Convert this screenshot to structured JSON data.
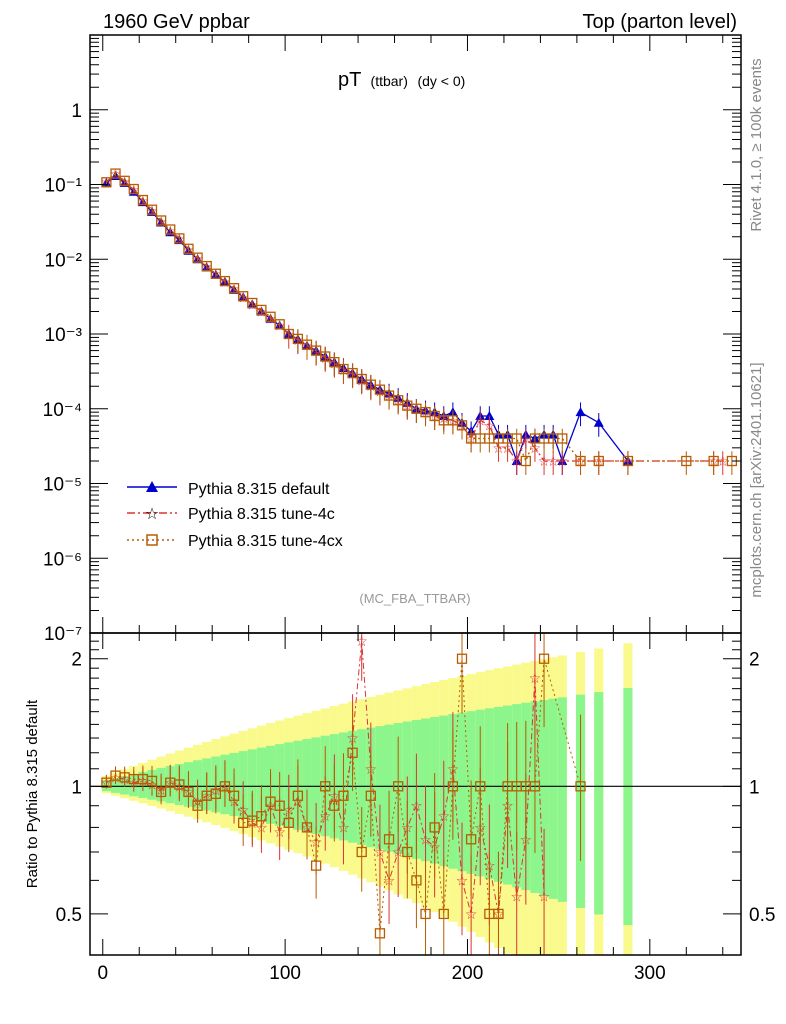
{
  "header": {
    "left": "1960 GeV ppbar",
    "right": "Top (parton level)"
  },
  "side_labels": {
    "rivet": "Rivet 4.1.0, ≥ 100k events",
    "mcplots": "mcplots.cern.ch [arXiv:2401.10621]"
  },
  "chart_data": [
    {
      "type": "line",
      "panel": "main",
      "title": "pT",
      "title_small": "(ttbar)",
      "title_suffix": "(dy < 0)",
      "watermark": "(MC_FBA_TTBAR)",
      "yscale": "log",
      "xlim": [
        -7,
        350
      ],
      "ylim": [
        1e-07,
        10
      ],
      "y_ticks": [
        {
          "v": 1,
          "label": "1"
        },
        {
          "v": 0.1,
          "label": "10⁻¹"
        },
        {
          "v": 0.01,
          "label": "10⁻²"
        },
        {
          "v": 0.001,
          "label": "10⁻³"
        },
        {
          "v": 0.0001,
          "label": "10⁻⁴"
        },
        {
          "v": 1e-05,
          "label": "10⁻⁵"
        },
        {
          "v": 1e-06,
          "label": "10⁻⁶"
        },
        {
          "v": 1e-07,
          "label": "10⁻⁷"
        }
      ],
      "series": [
        {
          "name": "Pythia 8.315 default",
          "color": "#0000cc",
          "marker": "triangle",
          "dash": "",
          "x": [
            2,
            7,
            12,
            17,
            22,
            27,
            32,
            37,
            42,
            47,
            52,
            57,
            62,
            67,
            72,
            77,
            82,
            87,
            92,
            97,
            102,
            107,
            112,
            117,
            122,
            127,
            132,
            137,
            142,
            147,
            152,
            157,
            162,
            167,
            172,
            177,
            182,
            187,
            192,
            197,
            202,
            207,
            212,
            217,
            222,
            227,
            232,
            237,
            242,
            247,
            252,
            262,
            272,
            288
          ],
          "y": [
            0.105,
            0.13,
            0.105,
            0.08,
            0.058,
            0.043,
            0.031,
            0.023,
            0.018,
            0.013,
            0.01,
            0.0078,
            0.0062,
            0.005,
            0.0039,
            0.0031,
            0.0025,
            0.002,
            0.0016,
            0.0013,
            0.001,
            0.00085,
            0.0007,
            0.0006,
            0.0005,
            0.00042,
            0.00035,
            0.0003,
            0.00025,
            0.00021,
            0.00018,
            0.00016,
            0.00014,
            0.00012,
            0.0001,
            9.5e-05,
            9e-05,
            8e-05,
            9e-05,
            6.5e-05,
            5e-05,
            8e-05,
            8e-05,
            4.5e-05,
            4.5e-05,
            2e-05,
            4.5e-05,
            4e-05,
            4.5e-05,
            4.5e-05,
            2e-05,
            9e-05,
            6.5e-05,
            2e-05
          ]
        },
        {
          "name": "Pythia 8.315 tune-4c",
          "color": "#dd3333",
          "marker": "star",
          "dash": "8,3,2,3",
          "x": [
            2,
            7,
            12,
            17,
            22,
            27,
            32,
            37,
            42,
            47,
            52,
            57,
            62,
            67,
            72,
            77,
            82,
            87,
            92,
            97,
            102,
            107,
            112,
            117,
            122,
            127,
            132,
            137,
            142,
            147,
            152,
            157,
            162,
            167,
            172,
            177,
            182,
            187,
            192,
            197,
            202,
            207,
            212,
            217,
            222,
            227,
            232,
            237,
            242,
            247,
            252,
            262,
            272,
            288,
            335,
            340
          ],
          "y": [
            0.108,
            0.14,
            0.11,
            0.085,
            0.06,
            0.045,
            0.032,
            0.024,
            0.019,
            0.0135,
            0.0102,
            0.008,
            0.0063,
            0.005,
            0.004,
            0.0031,
            0.0025,
            0.002,
            0.0016,
            0.0013,
            0.00098,
            0.00083,
            0.0007,
            0.00058,
            0.00048,
            0.0004,
            0.00033,
            0.00029,
            0.00024,
            0.0002,
            0.00017,
            0.00015,
            0.00013,
            0.00011,
            0.0001,
            9e-05,
            8e-05,
            7.5e-05,
            7e-05,
            6e-05,
            4e-05,
            7e-05,
            6e-05,
            3e-05,
            3e-05,
            2e-05,
            4e-05,
            3e-05,
            2e-05,
            2e-05,
            2e-05,
            2e-05,
            2e-05,
            2e-05,
            2e-05,
            2e-05
          ]
        },
        {
          "name": "Pythia 8.315 tune-4cx",
          "color": "#b85c00",
          "marker": "square",
          "dash": "2,3",
          "x": [
            2,
            7,
            12,
            17,
            22,
            27,
            32,
            37,
            42,
            47,
            52,
            57,
            62,
            67,
            72,
            77,
            82,
            87,
            92,
            97,
            102,
            107,
            112,
            117,
            122,
            127,
            132,
            137,
            142,
            147,
            152,
            157,
            162,
            167,
            172,
            177,
            182,
            187,
            192,
            197,
            202,
            207,
            212,
            217,
            222,
            227,
            232,
            237,
            242,
            247,
            252,
            262,
            272,
            288,
            320,
            335,
            345
          ],
          "y": [
            0.107,
            0.14,
            0.112,
            0.087,
            0.062,
            0.046,
            0.033,
            0.025,
            0.019,
            0.0138,
            0.0105,
            0.0081,
            0.0064,
            0.0051,
            0.0041,
            0.0032,
            0.0026,
            0.0021,
            0.0017,
            0.00135,
            0.001,
            0.00086,
            0.00072,
            0.0006,
            0.0005,
            0.00042,
            0.00034,
            0.0003,
            0.00025,
            0.00021,
            0.00018,
            0.00015,
            0.00013,
            0.00011,
            0.0001,
            9e-05,
            8e-05,
            7e-05,
            7e-05,
            6e-05,
            4e-05,
            4e-05,
            4e-05,
            4e-05,
            4e-05,
            4e-05,
            2e-05,
            4e-05,
            4e-05,
            4e-05,
            4e-05,
            2e-05,
            2e-05,
            2e-05,
            2e-05,
            2e-05,
            2e-05
          ]
        }
      ]
    },
    {
      "type": "line",
      "panel": "ratio",
      "ylabel": "Ratio to Pythia 8.315 default",
      "xlim": [
        -7,
        350
      ],
      "ylim": [
        0.4,
        2.3
      ],
      "x_ticks": [
        0,
        100,
        200,
        300
      ],
      "y_ticks": [
        0.5,
        1,
        2
      ],
      "band_colors": {
        "inner": "#8cf58c",
        "outer": "#fafa8c"
      },
      "reference": 1,
      "series": [
        {
          "name": "Pythia 8.315 tune-4c",
          "color": "#dd3333",
          "marker": "star",
          "x": [
            2,
            7,
            12,
            17,
            22,
            27,
            32,
            37,
            42,
            47,
            52,
            57,
            62,
            67,
            72,
            77,
            82,
            87,
            92,
            97,
            102,
            107,
            112,
            117,
            122,
            127,
            132,
            137,
            142,
            147,
            152,
            157,
            162,
            167,
            172,
            177,
            182,
            187,
            192,
            197,
            202,
            207,
            212,
            217,
            222,
            227,
            232,
            237,
            242
          ],
          "y": [
            1.02,
            1.05,
            1.04,
            1.02,
            1.03,
            1.01,
            0.98,
            1.02,
            1.0,
            0.97,
            0.92,
            0.95,
            0.98,
            1.0,
            0.92,
            0.88,
            0.82,
            0.8,
            0.9,
            0.78,
            0.88,
            0.92,
            0.8,
            0.74,
            0.85,
            0.95,
            0.8,
            1.3,
            2.2,
            1.1,
            0.7,
            0.6,
            0.7,
            0.8,
            0.9,
            0.75,
            0.72,
            0.85,
            1.1,
            0.6,
            0.5,
            0.8,
            0.65,
            0.5,
            0.9,
            0.55,
            0.75,
            1.8,
            0.55
          ]
        },
        {
          "name": "Pythia 8.315 tune-4cx",
          "color": "#b85c00",
          "marker": "square",
          "x": [
            2,
            7,
            12,
            17,
            22,
            27,
            32,
            37,
            42,
            47,
            52,
            57,
            62,
            67,
            72,
            77,
            82,
            87,
            92,
            97,
            102,
            107,
            112,
            117,
            122,
            127,
            132,
            137,
            142,
            147,
            152,
            157,
            162,
            167,
            172,
            177,
            182,
            187,
            192,
            197,
            202,
            207,
            212,
            217,
            222,
            227,
            232,
            237,
            242,
            262
          ],
          "y": [
            1.02,
            1.06,
            1.05,
            1.04,
            1.04,
            1.03,
            0.97,
            1.02,
            1.01,
            0.97,
            0.9,
            0.95,
            0.96,
            1.0,
            0.95,
            0.82,
            0.83,
            0.85,
            0.92,
            0.9,
            0.82,
            0.95,
            0.8,
            0.65,
            1.0,
            0.9,
            0.95,
            1.2,
            0.7,
            0.95,
            0.45,
            0.75,
            1.0,
            0.7,
            0.6,
            0.5,
            0.8,
            0.5,
            1.0,
            2.0,
            0.75,
            1.0,
            0.5,
            0.5,
            1.0,
            1.0,
            1.0,
            1.0,
            2.0,
            1.0
          ]
        }
      ]
    }
  ]
}
